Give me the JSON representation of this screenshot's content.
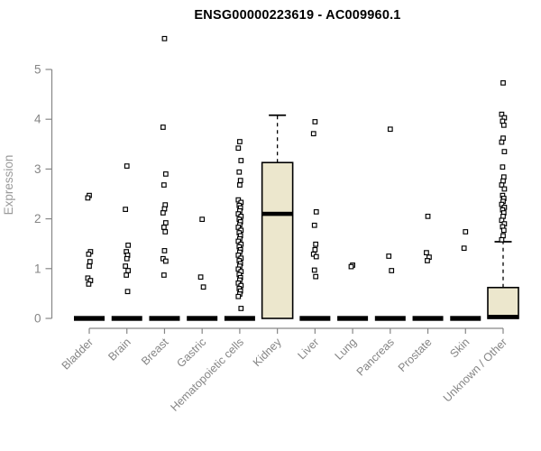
{
  "chart_data": {
    "type": "boxplot",
    "title": "ENSG00000223619 - AC009960.1",
    "xlabel": "",
    "ylabel": "Expression",
    "ylim": [
      0,
      5
    ],
    "yticks": [
      0,
      1,
      2,
      3,
      4,
      5
    ],
    "grid": false,
    "legend": "none",
    "box_fill": "#ECE7CD",
    "box_stroke": "#000000",
    "point_fill": "#ffffff",
    "point_stroke": "#000000",
    "axis_color": "#878787",
    "tick_label_color": "#858585",
    "ylabel_color": "#9a9a9a",
    "title_color": "#000000",
    "categories": [
      "Bladder",
      "Brain",
      "Breast",
      "Gastric",
      "Hematopoietic cells",
      "Kidney",
      "Liver",
      "Lung",
      "Pancreas",
      "Prostate",
      "Skin",
      "Unknown / Other"
    ],
    "series": [
      {
        "category": "Bladder",
        "box": {
          "q1": 0,
          "median": 0,
          "q3": 0,
          "whisker_low": 0,
          "whisker_high": 0
        },
        "points": [
          2.47,
          2.42,
          1.34,
          1.29,
          1.14,
          1.05,
          0.81,
          0.76,
          0.69
        ]
      },
      {
        "category": "Brain",
        "box": {
          "q1": 0,
          "median": 0,
          "q3": 0,
          "whisker_low": 0,
          "whisker_high": 0
        },
        "points": [
          3.06,
          2.19,
          1.47,
          1.34,
          1.27,
          1.2,
          1.05,
          0.96,
          0.87,
          0.54
        ]
      },
      {
        "category": "Breast",
        "box": {
          "q1": 0,
          "median": 0,
          "q3": 0,
          "whisker_low": 0,
          "whisker_high": 0
        },
        "points": [
          5.62,
          3.84,
          2.9,
          2.68,
          2.28,
          2.2,
          2.12,
          1.92,
          1.83,
          1.74,
          1.36,
          1.2,
          1.15,
          0.87
        ]
      },
      {
        "category": "Gastric",
        "box": {
          "q1": 0,
          "median": 0,
          "q3": 0,
          "whisker_low": 0,
          "whisker_high": 0
        },
        "points": [
          1.99,
          0.83,
          0.63
        ]
      },
      {
        "category": "Hematopoietic cells",
        "box": {
          "q1": 0,
          "median": 0,
          "q3": 0,
          "whisker_low": 0,
          "whisker_high": 0
        },
        "points": [
          3.55,
          3.42,
          3.17,
          2.94,
          2.77,
          2.68,
          2.38,
          2.33,
          2.27,
          2.22,
          2.16,
          2.1,
          2.05,
          1.99,
          1.94,
          1.88,
          1.83,
          1.77,
          1.72,
          1.66,
          1.6,
          1.55,
          1.49,
          1.44,
          1.38,
          1.33,
          1.27,
          1.21,
          1.16,
          1.1,
          1.05,
          0.99,
          0.94,
          0.88,
          0.82,
          0.77,
          0.71,
          0.66,
          0.6,
          0.55,
          0.49,
          0.44,
          0.2
        ]
      },
      {
        "category": "Kidney",
        "box": {
          "q1": 0,
          "median": 2.1,
          "q3": 3.13,
          "whisker_low": 0,
          "whisker_high": 4.08
        },
        "points": []
      },
      {
        "category": "Liver",
        "box": {
          "q1": 0,
          "median": 0,
          "q3": 0,
          "whisker_low": 0,
          "whisker_high": 0
        },
        "points": [
          3.95,
          3.71,
          2.14,
          1.87,
          1.49,
          1.38,
          1.29,
          1.24,
          0.97,
          0.84
        ]
      },
      {
        "category": "Lung",
        "box": {
          "q1": 0,
          "median": 0,
          "q3": 0,
          "whisker_low": 0,
          "whisker_high": 0
        },
        "points": [
          1.07,
          1.04
        ]
      },
      {
        "category": "Pancreas",
        "box": {
          "q1": 0,
          "median": 0,
          "q3": 0,
          "whisker_low": 0,
          "whisker_high": 0
        },
        "points": [
          3.8,
          1.25,
          0.96
        ]
      },
      {
        "category": "Prostate",
        "box": {
          "q1": 0,
          "median": 0,
          "q3": 0,
          "whisker_low": 0,
          "whisker_high": 0
        },
        "points": [
          2.05,
          1.32,
          1.23,
          1.16
        ]
      },
      {
        "category": "Skin",
        "box": {
          "q1": 0,
          "median": 0,
          "q3": 0,
          "whisker_low": 0,
          "whisker_high": 0
        },
        "points": [
          1.74,
          1.41
        ]
      },
      {
        "category": "Unknown / Other",
        "box": {
          "q1": 0,
          "median": 0.03,
          "q3": 0.62,
          "whisker_low": 0,
          "whisker_high": 1.54
        },
        "points": [
          4.73,
          4.1,
          4.03,
          3.96,
          3.88,
          3.62,
          3.54,
          3.35,
          3.04,
          2.84,
          2.76,
          2.68,
          2.6,
          2.47,
          2.41,
          2.35,
          2.29,
          2.23,
          2.18,
          2.12,
          2.05,
          1.97,
          1.9,
          1.84,
          1.77,
          1.66,
          1.58
        ]
      }
    ]
  }
}
